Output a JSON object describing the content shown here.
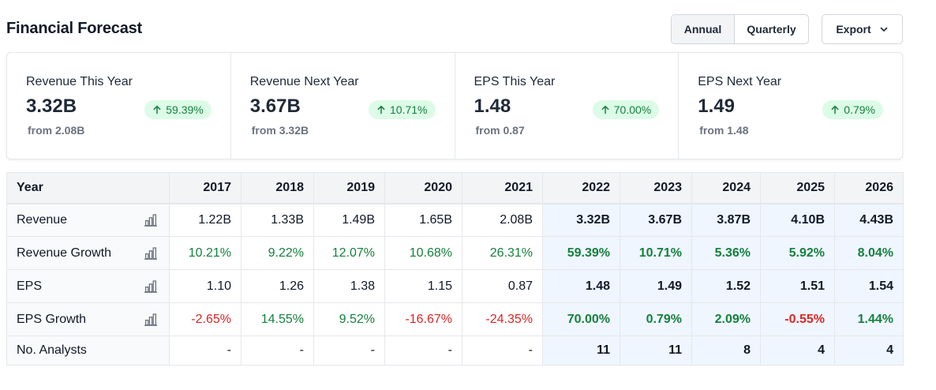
{
  "header": {
    "title": "Financial Forecast"
  },
  "toggle": {
    "annual": "Annual",
    "quarterly": "Quarterly",
    "selected": "Annual"
  },
  "export": {
    "label": "Export"
  },
  "colors": {
    "positive": "#15803d",
    "negative": "#dc2626",
    "forecast_bg": "#eff6ff",
    "badge_bg": "#dcfce7"
  },
  "cards": [
    {
      "label": "Revenue This Year",
      "value": "3.32B",
      "change": "59.39%",
      "from": "from 2.08B"
    },
    {
      "label": "Revenue Next Year",
      "value": "3.67B",
      "change": "10.71%",
      "from": "from 3.32B"
    },
    {
      "label": "EPS This Year",
      "value": "1.48",
      "change": "70.00%",
      "from": "from 0.87"
    },
    {
      "label": "EPS Next Year",
      "value": "1.49",
      "change": "0.79%",
      "from": "from 1.48"
    }
  ],
  "table": {
    "year_header": "Year",
    "years": [
      "2017",
      "2018",
      "2019",
      "2020",
      "2021",
      "2022",
      "2023",
      "2024",
      "2025",
      "2026"
    ],
    "rows": [
      {
        "label": "Revenue",
        "values": [
          "1.22B",
          "1.33B",
          "1.49B",
          "1.65B",
          "2.08B",
          "3.32B",
          "3.67B",
          "3.87B",
          "4.10B",
          "4.43B"
        ]
      },
      {
        "label": "Revenue Growth",
        "values": [
          "10.21%",
          "9.22%",
          "12.07%",
          "10.68%",
          "26.31%",
          "59.39%",
          "10.71%",
          "5.36%",
          "5.92%",
          "8.04%"
        ]
      },
      {
        "label": "EPS",
        "values": [
          "1.10",
          "1.26",
          "1.38",
          "1.15",
          "0.87",
          "1.48",
          "1.49",
          "1.52",
          "1.51",
          "1.54"
        ]
      },
      {
        "label": "EPS Growth",
        "values": [
          "-2.65%",
          "14.55%",
          "9.52%",
          "-16.67%",
          "-24.35%",
          "70.00%",
          "0.79%",
          "2.09%",
          "-0.55%",
          "1.44%"
        ]
      },
      {
        "label": "No. Analysts",
        "values": [
          "-",
          "-",
          "-",
          "-",
          "-",
          "11",
          "11",
          "8",
          "4",
          "4"
        ]
      }
    ]
  }
}
